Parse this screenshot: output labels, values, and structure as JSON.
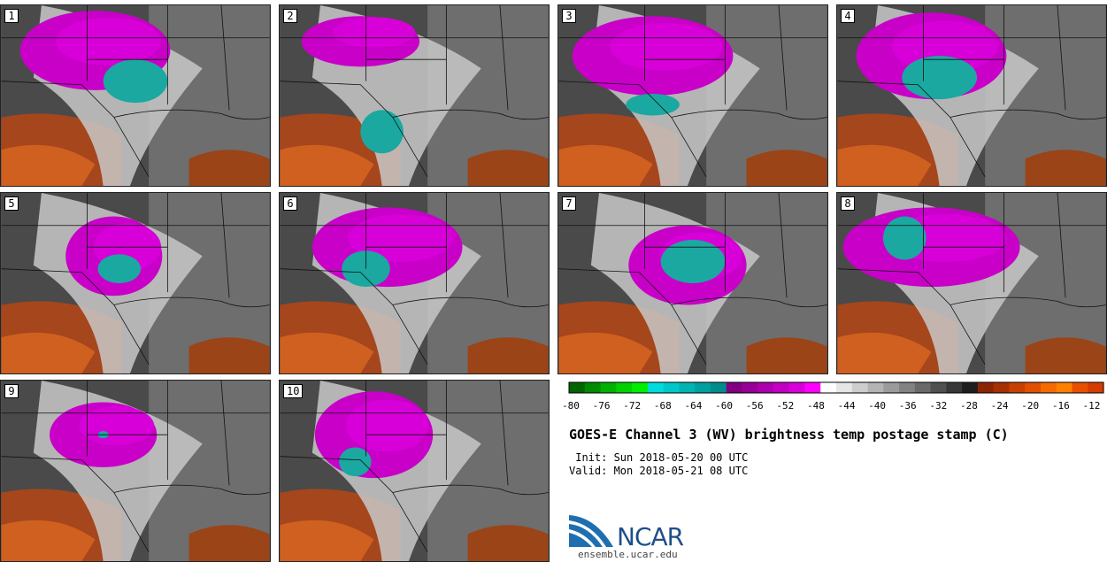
{
  "panels": [
    {
      "label": "1"
    },
    {
      "label": "2"
    },
    {
      "label": "3"
    },
    {
      "label": "4"
    },
    {
      "label": "5"
    },
    {
      "label": "6"
    },
    {
      "label": "7"
    },
    {
      "label": "8"
    },
    {
      "label": "9"
    },
    {
      "label": "10"
    }
  ],
  "colorbar": {
    "colors": [
      "#006400",
      "#008a00",
      "#00b000",
      "#00d000",
      "#00ee00",
      "#00dcdc",
      "#00c8c8",
      "#00b4b4",
      "#00a0a0",
      "#008c8c",
      "#800080",
      "#960096",
      "#ac00ac",
      "#c200c2",
      "#d800d8",
      "#ff00ff",
      "#ffffff",
      "#e6e6e6",
      "#cdcdcd",
      "#b4b4b4",
      "#9b9b9b",
      "#828282",
      "#696969",
      "#505050",
      "#373737",
      "#1e1e1e",
      "#8b2500",
      "#a53000",
      "#c84000",
      "#e05000",
      "#f46a00",
      "#ff7f00",
      "#e85000",
      "#d43c00"
    ],
    "ticks": [
      "-80",
      "-76",
      "-72",
      "-68",
      "-64",
      "-60",
      "-56",
      "-52",
      "-48",
      "-44",
      "-40",
      "-36",
      "-32",
      "-28",
      "-24",
      "-20",
      "-16",
      "-12"
    ]
  },
  "title": "GOES-E Channel 3 (WV) brightness temp postage stamp (C)",
  "init": " Init: Sun 2018-05-20 00 UTC",
  "valid": "Valid: Mon 2018-05-21 08 UTC",
  "logo_text": "NCAR",
  "url": "ensemble.ucar.edu"
}
